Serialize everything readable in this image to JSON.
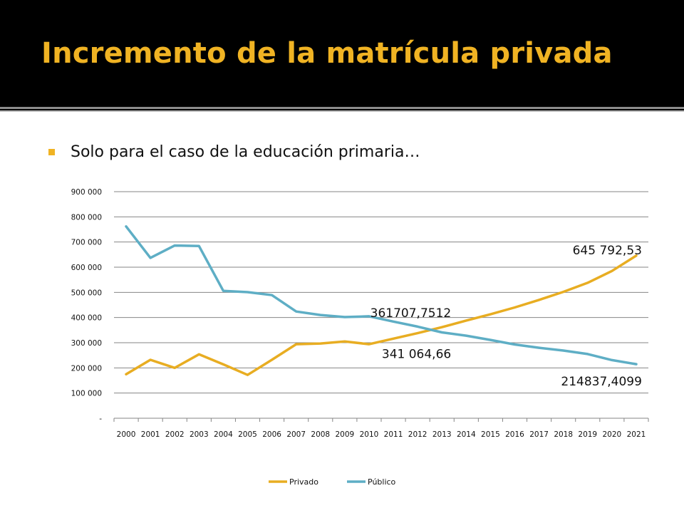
{
  "slide": {
    "title": "Incremento de la matrícula privada",
    "bullet": "Solo para el caso de la educación primaria…"
  },
  "colors": {
    "accent": "#f0b323",
    "privado": "#e8ad22",
    "publico": "#5eaec5",
    "background": "#000000"
  },
  "chart_data": {
    "type": "line",
    "title": "",
    "xlabel": "",
    "ylabel": "",
    "categories": [
      "2000",
      "2001",
      "2002",
      "2003",
      "2004",
      "2005",
      "2006",
      "2007",
      "2008",
      "2009",
      "2010",
      "2011",
      "2012",
      "2013",
      "2014",
      "2015",
      "2016",
      "2017",
      "2018",
      "2019",
      "2020",
      "2021"
    ],
    "y_tick_labels": [
      "-",
      "100 000",
      "200 000",
      "300 000",
      "400 000",
      "500 000",
      "600 000",
      "700 000",
      "800 000",
      "900 000"
    ],
    "ylim": [
      0,
      900000
    ],
    "grid": true,
    "legend_position": "bottom",
    "series": [
      {
        "name": "Privado",
        "color": "#e8ad22",
        "values": [
          175000,
          232000,
          200000,
          254000,
          214000,
          172000,
          232000,
          294000,
          297000,
          305000,
          294000,
          316000,
          338000,
          361708,
          388000,
          413000,
          440000,
          470000,
          502000,
          538000,
          585000,
          645793
        ]
      },
      {
        "name": "Público",
        "color": "#5eaec5",
        "values": [
          762000,
          637000,
          686000,
          684000,
          506000,
          501000,
          489000,
          424000,
          410000,
          402000,
          405000,
          384000,
          364000,
          341065,
          328000,
          311000,
          293000,
          280000,
          269000,
          255000,
          231000,
          214837
        ]
      }
    ],
    "annotations": [
      {
        "text": "645 792,53"
      },
      {
        "text": "361707,7512"
      },
      {
        "text": "341 064,66"
      },
      {
        "text": "214837,4099"
      }
    ]
  }
}
